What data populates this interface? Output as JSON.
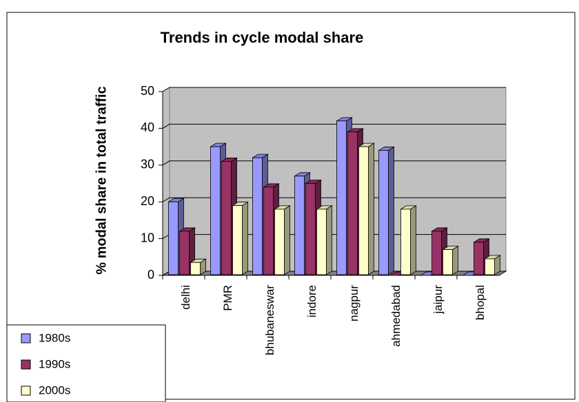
{
  "chart_data": {
    "type": "bar",
    "title": "Trends in cycle modal share",
    "y_label": "% modal share in total traffic",
    "categories": [
      "delhi",
      "PMR",
      "bhubaneswar",
      "indore",
      "nagpur",
      "ahmedabad",
      "jaipur",
      "bhopal"
    ],
    "series": [
      {
        "name": "1980s",
        "color": "#9999ff",
        "values": [
          20,
          35,
          32,
          27,
          42,
          34,
          0,
          0
        ]
      },
      {
        "name": "1990s",
        "color": "#993366",
        "values": [
          12,
          31,
          24,
          25,
          39,
          0,
          12,
          9
        ]
      },
      {
        "name": "2000s",
        "color": "#ffffcc",
        "values": [
          3.5,
          19,
          18,
          18,
          35,
          18,
          7,
          4.5
        ]
      }
    ],
    "ylim": [
      0,
      50
    ],
    "yticks": [
      0,
      10,
      20,
      30,
      40,
      50
    ],
    "grid": true
  }
}
